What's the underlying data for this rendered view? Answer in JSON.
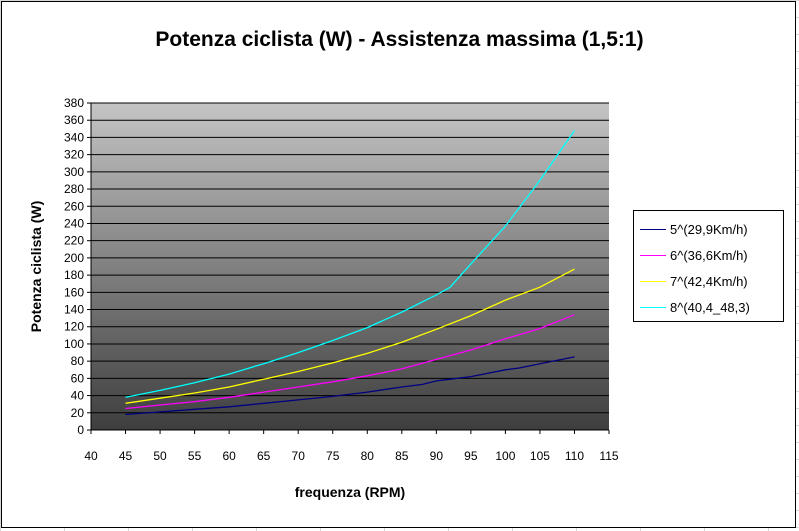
{
  "chart_data": {
    "type": "line",
    "title": "Potenza ciclista (W) - Assistenza massima (1,5:1)",
    "xlabel": "frequenza (RPM)",
    "ylabel": "Potenza ciclista (W)",
    "xlim": [
      40,
      115
    ],
    "ylim": [
      0,
      380
    ],
    "xticks": [
      40,
      45,
      50,
      55,
      60,
      65,
      70,
      75,
      80,
      85,
      90,
      95,
      100,
      105,
      110,
      115
    ],
    "yticks": [
      0,
      20,
      40,
      60,
      80,
      100,
      120,
      140,
      160,
      180,
      200,
      220,
      240,
      260,
      280,
      300,
      320,
      340,
      360,
      380
    ],
    "grid": "horizontal",
    "legend_position": "right",
    "series": [
      {
        "name": "5^(29,9Km/h)",
        "color": "#000080",
        "points": [
          [
            45,
            18
          ],
          [
            50,
            21
          ],
          [
            55,
            24
          ],
          [
            60,
            27
          ],
          [
            65,
            31
          ],
          [
            70,
            35
          ],
          [
            75,
            39
          ],
          [
            80,
            44
          ],
          [
            85,
            50
          ],
          [
            88,
            53
          ],
          [
            90,
            57
          ],
          [
            92,
            59
          ],
          [
            95,
            62
          ],
          [
            100,
            70
          ],
          [
            102,
            72
          ],
          [
            105,
            77
          ],
          [
            110,
            85
          ]
        ]
      },
      {
        "name": "6^(36,6Km/h)",
        "color": "#ff00ff",
        "points": [
          [
            45,
            25
          ],
          [
            50,
            29
          ],
          [
            55,
            33
          ],
          [
            60,
            38
          ],
          [
            65,
            44
          ],
          [
            70,
            50
          ],
          [
            75,
            56
          ],
          [
            80,
            63
          ],
          [
            85,
            71
          ],
          [
            90,
            82
          ],
          [
            95,
            93
          ],
          [
            100,
            106
          ],
          [
            105,
            118
          ],
          [
            110,
            134
          ]
        ]
      },
      {
        "name": "7^(42,4Km/h)",
        "color": "#ffff00",
        "points": [
          [
            45,
            31
          ],
          [
            50,
            37
          ],
          [
            55,
            43
          ],
          [
            60,
            50
          ],
          [
            65,
            59
          ],
          [
            70,
            68
          ],
          [
            75,
            78
          ],
          [
            80,
            89
          ],
          [
            85,
            102
          ],
          [
            90,
            117
          ],
          [
            95,
            133
          ],
          [
            100,
            151
          ],
          [
            105,
            166
          ],
          [
            110,
            187
          ]
        ]
      },
      {
        "name": "8^(40,4_48,3)",
        "color": "#00ffff",
        "points": [
          [
            45,
            38
          ],
          [
            50,
            46
          ],
          [
            55,
            55
          ],
          [
            60,
            65
          ],
          [
            65,
            77
          ],
          [
            70,
            90
          ],
          [
            75,
            104
          ],
          [
            80,
            119
          ],
          [
            85,
            137
          ],
          [
            90,
            157
          ],
          [
            92,
            166
          ],
          [
            95,
            193
          ],
          [
            100,
            237
          ],
          [
            105,
            290
          ],
          [
            110,
            348
          ]
        ]
      }
    ]
  }
}
